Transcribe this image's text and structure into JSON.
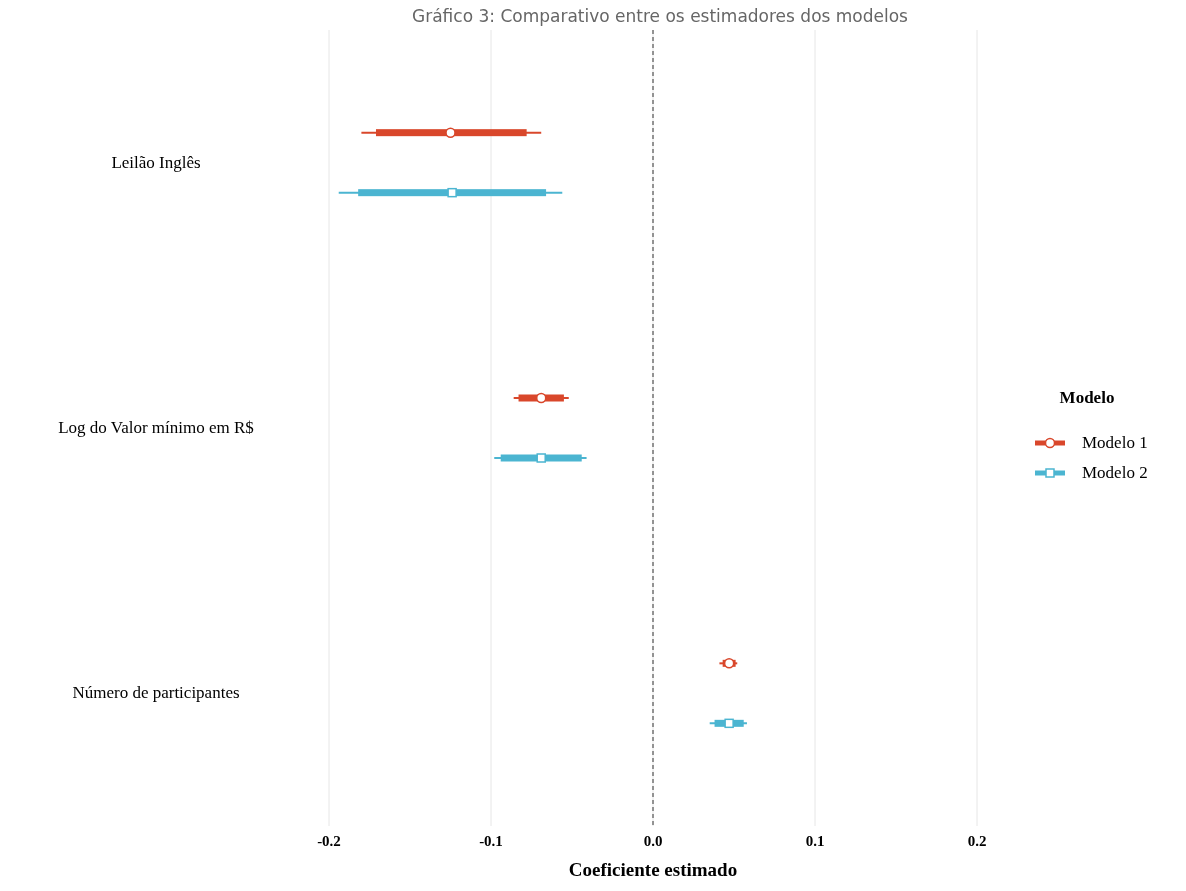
{
  "chart_data": {
    "type": "scatter",
    "orientation": "horizontal",
    "title": "Gráfico 3: Comparativo entre os estimadores dos modelos",
    "xlabel": "Coeficiente estimado",
    "legend_title": "Modelo",
    "categories": [
      "Leilão Inglês",
      "Log do Valor mínimo em R$",
      "Número de participantes"
    ],
    "xlim": [
      -0.2,
      0.2
    ],
    "xticks": [
      -0.2,
      -0.1,
      {
        "value": 0,
        "label": "0.0"
      },
      0.1,
      0.2
    ],
    "grid": "x",
    "legend": "right",
    "ref_lines": [
      {
        "axis": "x",
        "value": 0,
        "line_style": "dashed",
        "color": "#333333"
      }
    ],
    "series": [
      {
        "type": "bar",
        "color": "#d9472b",
        "base": [
          -0.171,
          -0.083,
          0.043
        ],
        "values": [
          0.093,
          0.028,
          0.008
        ]
      },
      {
        "type": "bar",
        "color": "#4bb5d1",
        "base": [
          -0.182,
          -0.094,
          0.038
        ],
        "values": [
          0.116,
          0.05,
          0.018
        ]
      },
      {
        "name": "Modelo 1",
        "marker": "circle",
        "color": "#d9472b",
        "values": [
          -0.125,
          -0.069,
          0.047
        ],
        "errors": [
          [
            -0.18,
            -0.069
          ],
          [
            -0.086,
            -0.052
          ],
          [
            0.041,
            0.052
          ]
        ]
      },
      {
        "name": "Modelo 2",
        "marker": "square",
        "color": "#4bb5d1",
        "values": [
          -0.124,
          -0.069,
          0.047
        ],
        "errors": [
          [
            -0.194,
            -0.056
          ],
          [
            -0.098,
            -0.041
          ],
          [
            0.035,
            0.058
          ]
        ]
      }
    ]
  }
}
